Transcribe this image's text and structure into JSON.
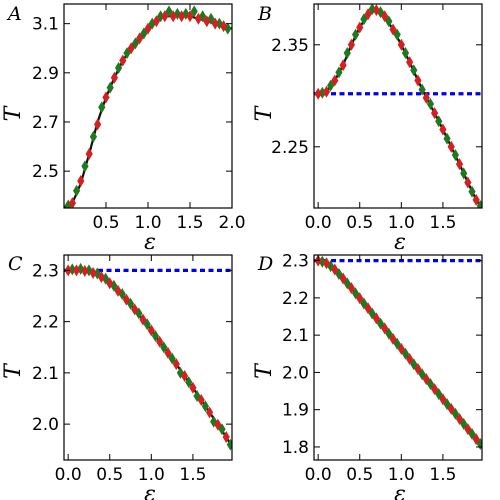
{
  "colors": {
    "green_series": "#1f7a1f",
    "red_series": "#d42020",
    "line_series": "#111111",
    "reference_line": "#0000ee"
  },
  "chart_data": [
    {
      "type": "line",
      "panel_letter": "A",
      "xlabel": "ε",
      "ylabel": "T",
      "xlim": [
        0.0,
        2.0
      ],
      "ylim": [
        2.35,
        3.18
      ],
      "xticks": [
        0.5,
        1.0,
        1.5,
        2.0
      ],
      "xtick_labels": [
        "0.5",
        "1.0",
        "1.5",
        "2.0"
      ],
      "yticks": [
        2.5,
        2.7,
        2.9,
        3.1
      ],
      "ytick_labels": [
        "2.5",
        "2.7",
        "2.9",
        "3.1"
      ],
      "reference_line": null,
      "series": [
        {
          "style": "line",
          "x": [
            0.0,
            0.1,
            0.2,
            0.3,
            0.4,
            0.5,
            0.6,
            0.7,
            0.8,
            0.9,
            1.0,
            1.1,
            1.2,
            1.3,
            1.4,
            1.5,
            1.6,
            1.7,
            1.8,
            1.9,
            2.0
          ],
          "y": [
            2.35,
            2.37,
            2.45,
            2.57,
            2.7,
            2.8,
            2.88,
            2.95,
            3.0,
            3.04,
            3.08,
            3.11,
            3.13,
            3.13,
            3.13,
            3.13,
            3.12,
            3.11,
            3.1,
            3.09,
            3.08
          ]
        },
        {
          "style": "green-diamond",
          "x": [
            0.05,
            0.15,
            0.25,
            0.35,
            0.45,
            0.55,
            0.65,
            0.75,
            0.85,
            0.95,
            1.05,
            1.15,
            1.25,
            1.35,
            1.45,
            1.55,
            1.65,
            1.75,
            1.85,
            1.95
          ],
          "y": [
            2.36,
            2.42,
            2.52,
            2.64,
            2.76,
            2.84,
            2.92,
            2.98,
            3.02,
            3.06,
            3.1,
            3.13,
            3.15,
            3.14,
            3.14,
            3.15,
            3.13,
            3.12,
            3.1,
            3.08
          ]
        },
        {
          "style": "red-diamond",
          "x": [
            0.1,
            0.2,
            0.3,
            0.4,
            0.5,
            0.6,
            0.7,
            0.8,
            0.9,
            1.0,
            1.1,
            1.2,
            1.3,
            1.4,
            1.5,
            1.6,
            1.7,
            1.8,
            1.9
          ],
          "y": [
            2.37,
            2.46,
            2.57,
            2.69,
            2.8,
            2.88,
            2.95,
            3.0,
            3.04,
            3.08,
            3.11,
            3.13,
            3.13,
            3.13,
            3.13,
            3.12,
            3.11,
            3.1,
            3.09
          ]
        }
      ]
    },
    {
      "type": "line",
      "panel_letter": "B",
      "xlabel": "ε",
      "ylabel": "T",
      "xlim": [
        -0.05,
        1.97
      ],
      "ylim": [
        2.19,
        2.39
      ],
      "xticks": [
        0.0,
        0.5,
        1.0,
        1.5
      ],
      "xtick_labels": [
        "0.0",
        "0.5",
        "1.0",
        "1.5"
      ],
      "yticks": [
        2.25,
        2.35
      ],
      "ytick_labels": [
        "2.25",
        "2.35"
      ],
      "reference_line": 2.302,
      "series": [
        {
          "style": "line",
          "x": [
            0.0,
            0.1,
            0.2,
            0.3,
            0.4,
            0.5,
            0.6,
            0.7,
            0.8,
            0.9,
            1.0,
            1.1,
            1.2,
            1.3,
            1.4,
            1.5,
            1.6,
            1.7,
            1.8,
            1.9,
            1.97
          ],
          "y": [
            2.302,
            2.304,
            2.315,
            2.33,
            2.35,
            2.367,
            2.38,
            2.384,
            2.378,
            2.365,
            2.35,
            2.333,
            2.315,
            2.298,
            2.283,
            2.267,
            2.25,
            2.233,
            2.215,
            2.198,
            2.19
          ]
        },
        {
          "style": "green-diamond",
          "x": [
            0.05,
            0.15,
            0.25,
            0.35,
            0.45,
            0.55,
            0.65,
            0.75,
            0.85,
            0.95,
            1.05,
            1.15,
            1.25,
            1.35,
            1.45,
            1.55,
            1.65,
            1.75,
            1.85,
            1.95
          ],
          "y": [
            2.303,
            2.31,
            2.323,
            2.342,
            2.36,
            2.375,
            2.385,
            2.382,
            2.373,
            2.36,
            2.342,
            2.325,
            2.306,
            2.292,
            2.275,
            2.258,
            2.242,
            2.224,
            2.206,
            2.192
          ]
        },
        {
          "style": "red-diamond",
          "x": [
            0.0,
            0.1,
            0.2,
            0.3,
            0.4,
            0.5,
            0.6,
            0.7,
            0.8,
            0.9,
            1.0,
            1.1,
            1.2,
            1.3,
            1.4,
            1.5,
            1.6,
            1.7,
            1.8,
            1.9
          ],
          "y": [
            2.302,
            2.304,
            2.315,
            2.33,
            2.35,
            2.367,
            2.38,
            2.384,
            2.378,
            2.365,
            2.35,
            2.333,
            2.315,
            2.298,
            2.283,
            2.267,
            2.25,
            2.233,
            2.215,
            2.198
          ]
        }
      ]
    },
    {
      "type": "line",
      "panel_letter": "C",
      "xlabel": "ε",
      "ylabel": "T",
      "xlim": [
        -0.05,
        1.97
      ],
      "ylim": [
        1.93,
        2.33
      ],
      "xticks": [
        0.0,
        0.5,
        1.0,
        1.5
      ],
      "xtick_labels": [
        "0.0",
        "0.5",
        "1.0",
        "1.5"
      ],
      "yticks": [
        2.0,
        2.1,
        2.2,
        2.3
      ],
      "ytick_labels": [
        "2.0",
        "2.1",
        "2.2",
        "2.3"
      ],
      "reference_line": 2.3,
      "series": [
        {
          "style": "line",
          "x": [
            0.0,
            0.1,
            0.2,
            0.3,
            0.4,
            0.5,
            0.6,
            0.7,
            0.8,
            0.9,
            1.0,
            1.1,
            1.2,
            1.3,
            1.4,
            1.5,
            1.6,
            1.7,
            1.8,
            1.9,
            1.97
          ],
          "y": [
            2.3,
            2.3,
            2.299,
            2.295,
            2.287,
            2.275,
            2.26,
            2.243,
            2.224,
            2.204,
            2.183,
            2.161,
            2.139,
            2.117,
            2.094,
            2.071,
            2.047,
            2.023,
            1.999,
            1.975,
            1.955
          ]
        },
        {
          "style": "green-diamond",
          "x": [
            0.05,
            0.15,
            0.25,
            0.35,
            0.45,
            0.55,
            0.65,
            0.75,
            0.85,
            0.95,
            1.05,
            1.15,
            1.25,
            1.35,
            1.45,
            1.55,
            1.65,
            1.75,
            1.85,
            1.95
          ],
          "y": [
            2.302,
            2.303,
            2.3,
            2.294,
            2.284,
            2.27,
            2.254,
            2.235,
            2.216,
            2.195,
            2.172,
            2.15,
            2.128,
            2.1,
            2.082,
            2.055,
            2.035,
            2.005,
            1.99,
            1.96
          ]
        },
        {
          "style": "red-diamond",
          "x": [
            0.0,
            0.1,
            0.2,
            0.3,
            0.4,
            0.5,
            0.6,
            0.7,
            0.8,
            0.9,
            1.0,
            1.1,
            1.2,
            1.3,
            1.4,
            1.5,
            1.6,
            1.7,
            1.8,
            1.9
          ],
          "y": [
            2.3,
            2.3,
            2.299,
            2.295,
            2.287,
            2.275,
            2.26,
            2.243,
            2.224,
            2.204,
            2.183,
            2.161,
            2.139,
            2.117,
            2.094,
            2.071,
            2.047,
            2.023,
            1.999,
            1.975
          ]
        }
      ]
    },
    {
      "type": "line",
      "panel_letter": "D",
      "xlabel": "ε",
      "ylabel": "T",
      "xlim": [
        -0.05,
        1.97
      ],
      "ylim": [
        1.765,
        2.315
      ],
      "xticks": [
        0.0,
        0.5,
        1.0,
        1.5
      ],
      "xtick_labels": [
        "0.0",
        "0.5",
        "1.0",
        "1.5"
      ],
      "yticks": [
        1.8,
        1.9,
        2.0,
        2.1,
        2.2,
        2.3
      ],
      "ytick_labels": [
        "1.8",
        "1.9",
        "2.0",
        "2.1",
        "2.2",
        "2.3"
      ],
      "reference_line": 2.3,
      "series": [
        {
          "style": "line",
          "x": [
            0.0,
            0.1,
            0.2,
            0.3,
            0.4,
            0.5,
            0.6,
            0.7,
            0.8,
            0.9,
            1.0,
            1.1,
            1.2,
            1.3,
            1.4,
            1.5,
            1.6,
            1.7,
            1.8,
            1.9,
            1.97
          ],
          "y": [
            2.3,
            2.293,
            2.276,
            2.252,
            2.226,
            2.199,
            2.172,
            2.145,
            2.118,
            2.09,
            2.063,
            2.036,
            2.009,
            1.982,
            1.955,
            1.928,
            1.902,
            1.875,
            1.848,
            1.821,
            1.802
          ]
        },
        {
          "style": "green-diamond",
          "x": [
            0.05,
            0.15,
            0.25,
            0.35,
            0.45,
            0.55,
            0.65,
            0.75,
            0.85,
            0.95,
            1.05,
            1.15,
            1.25,
            1.35,
            1.45,
            1.55,
            1.65,
            1.75,
            1.85,
            1.95
          ],
          "y": [
            2.297,
            2.285,
            2.264,
            2.239,
            2.212,
            2.185,
            2.158,
            2.131,
            2.104,
            2.077,
            2.05,
            2.022,
            1.995,
            1.969,
            1.942,
            1.915,
            1.889,
            1.862,
            1.835,
            1.808
          ]
        },
        {
          "style": "red-diamond",
          "x": [
            0.0,
            0.1,
            0.2,
            0.3,
            0.4,
            0.5,
            0.6,
            0.7,
            0.8,
            0.9,
            1.0,
            1.1,
            1.2,
            1.3,
            1.4,
            1.5,
            1.6,
            1.7,
            1.8,
            1.9
          ],
          "y": [
            2.3,
            2.293,
            2.276,
            2.252,
            2.226,
            2.199,
            2.172,
            2.145,
            2.118,
            2.09,
            2.063,
            2.036,
            2.009,
            1.982,
            1.955,
            1.928,
            1.902,
            1.875,
            1.848,
            1.821
          ]
        }
      ]
    }
  ]
}
